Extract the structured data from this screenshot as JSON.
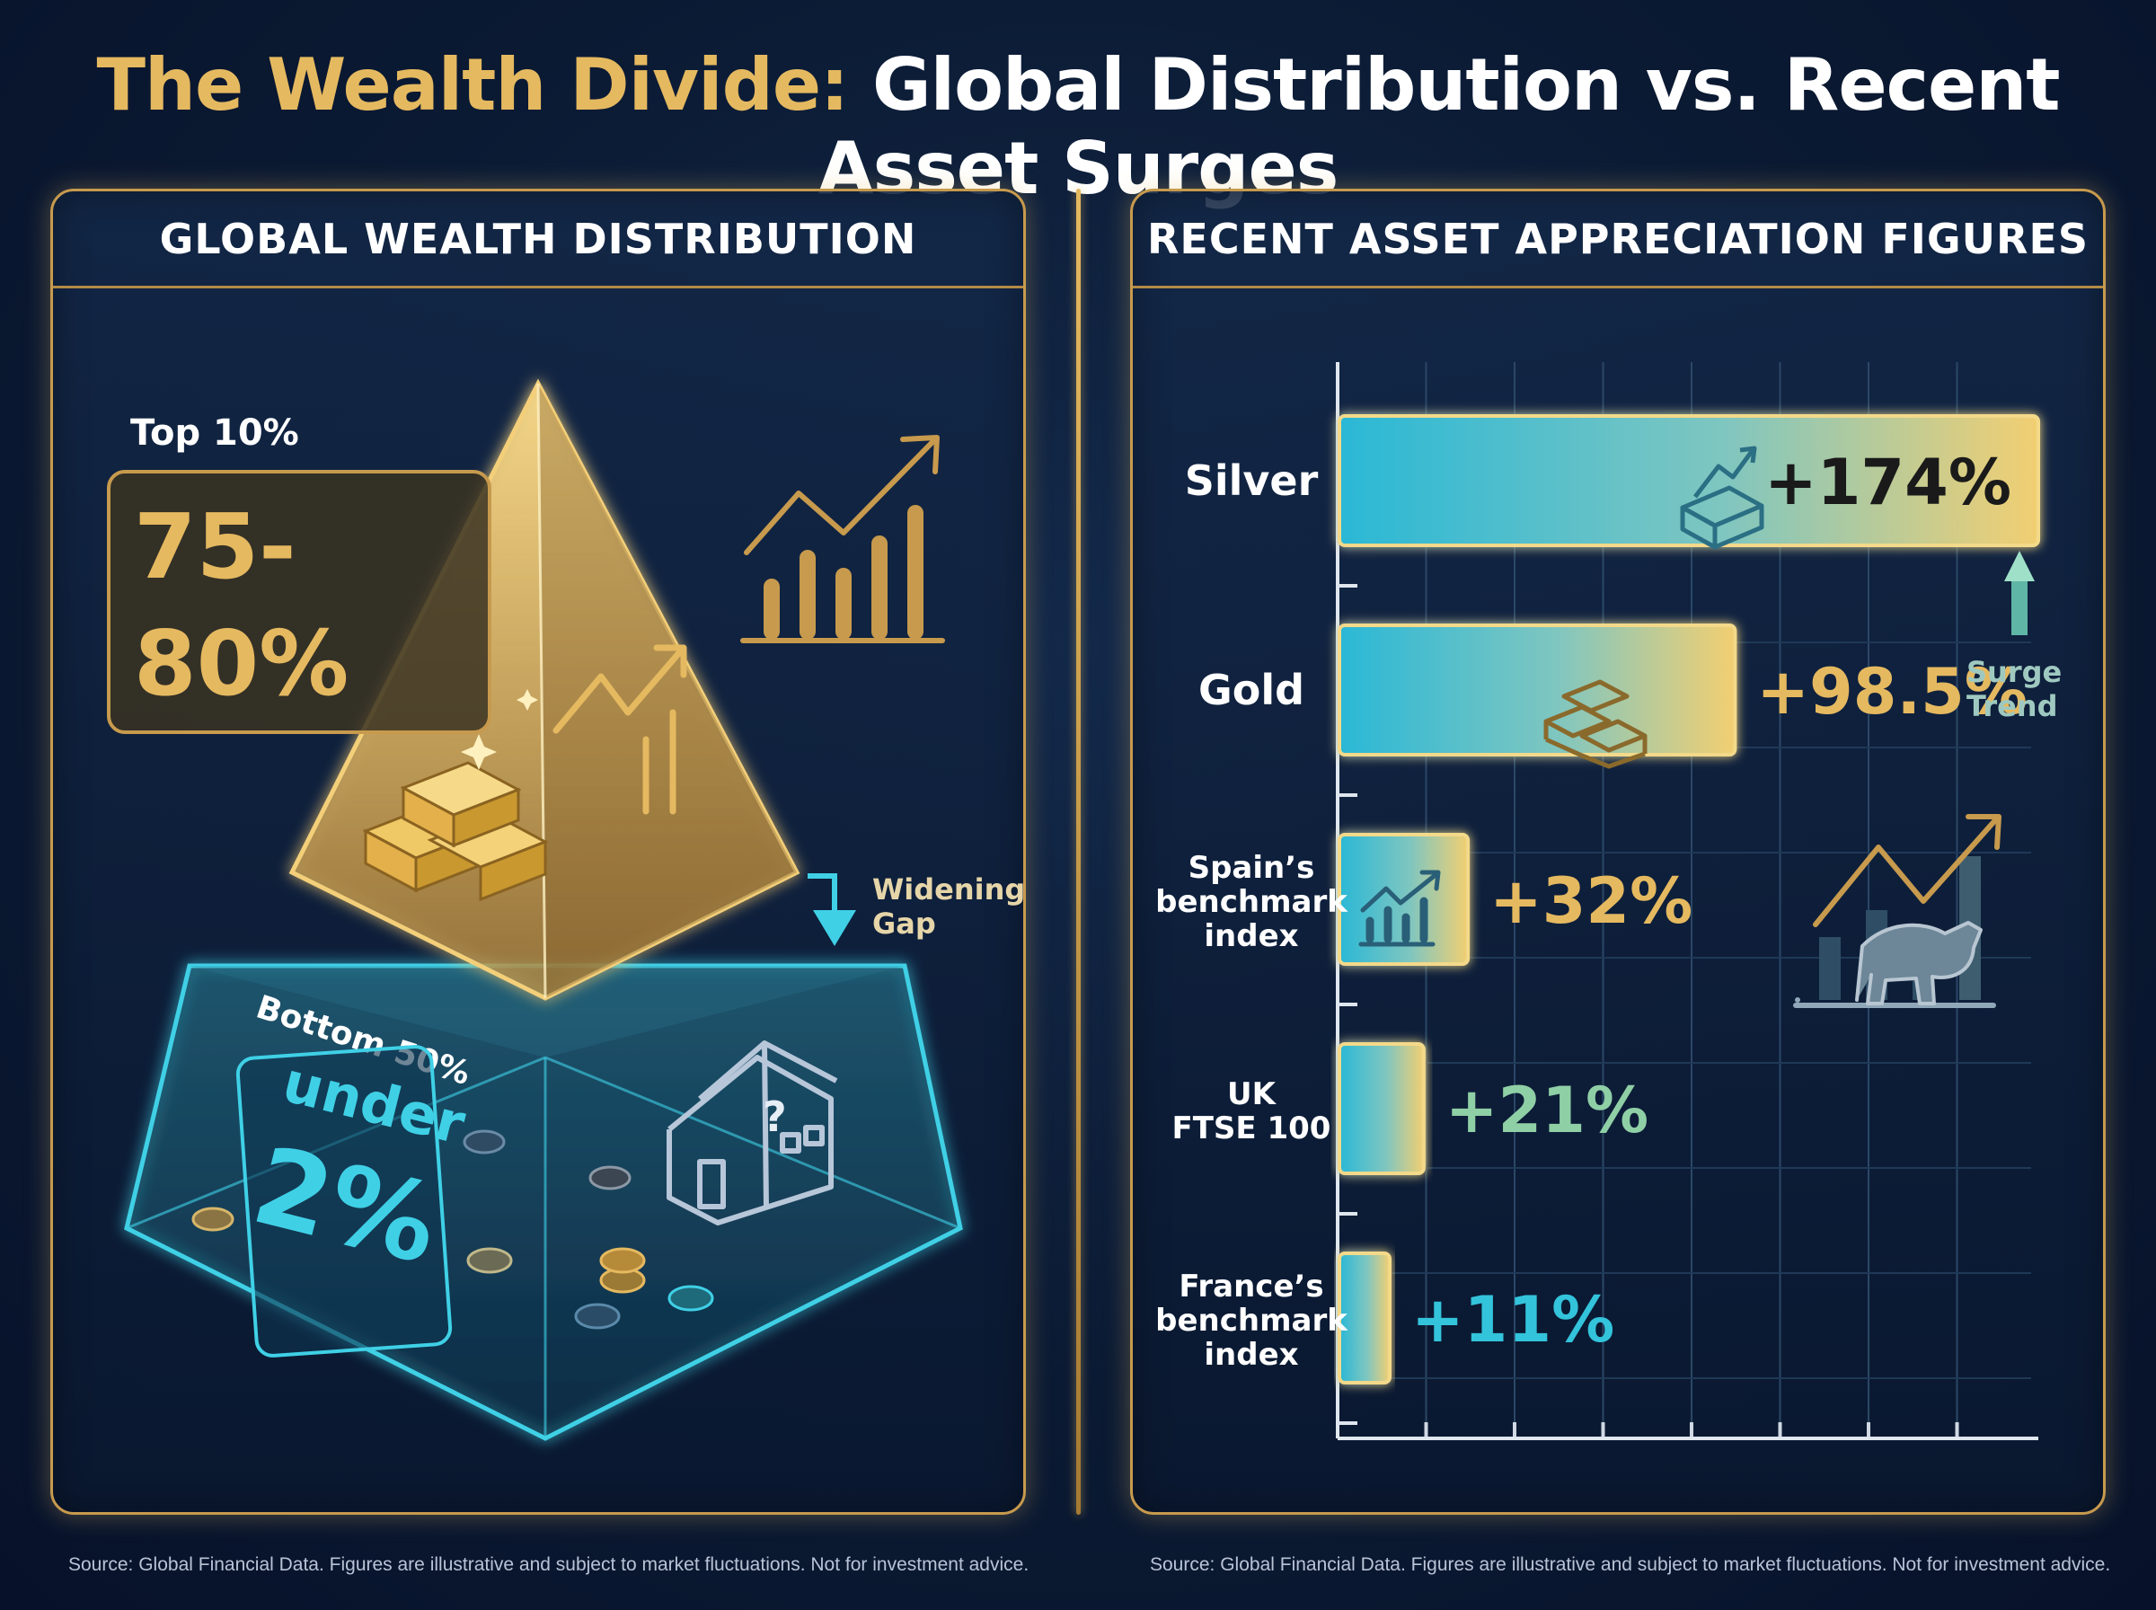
{
  "title": {
    "part1": "The Wealth Divide:",
    "part2": "Global Distribution vs. Recent Asset Surges"
  },
  "left_panel": {
    "heading": "GLOBAL WEALTH DISTRIBUTION",
    "top_label": "Top 10%",
    "top_value_line1": "75-",
    "top_value_line2": "80%",
    "bottom_label": "Bottom 50%",
    "bottom_value_line1": "under",
    "bottom_value_line2": "2%",
    "gap_label_line1": "Widening",
    "gap_label_line2": "Gap",
    "source": "Source: Global Financial Data. Figures are illustrative and subject to market fluctuations. Not for investment advice."
  },
  "right_panel": {
    "heading": "RECENT ASSET APPRECIATION FIGURES",
    "surge_label_line1": "Surge",
    "surge_label_line2": "Trend",
    "source": "Source: Global Financial Data. Figures are illustrative and subject to market fluctuations. Not for investment advice."
  },
  "colors": {
    "gold": "#e5b960",
    "teal": "#33c4dc",
    "navy": "#0b1a33"
  },
  "icons": [
    "silver-bar-icon",
    "gold-bars-icon",
    "growth-chart-icon",
    "bull-chart-icon",
    "house-question-icon",
    "coin-icon",
    "trend-chart-icon"
  ],
  "chart_data": {
    "type": "bar",
    "orientation": "horizontal",
    "title": "RECENT ASSET APPRECIATION FIGURES",
    "categories": [
      "Silver",
      "Gold",
      "Spain’s benchmark index",
      "UK FTSE 100",
      "France’s benchmark index"
    ],
    "category_lines": [
      [
        "Silver"
      ],
      [
        "Gold"
      ],
      [
        "Spain’s",
        "benchmark",
        "index"
      ],
      [
        "UK",
        "FTSE 100"
      ],
      [
        "France’s",
        "benchmark",
        "index"
      ]
    ],
    "values": [
      174,
      98.5,
      32,
      21,
      11
    ],
    "value_labels": [
      "+174%",
      "+98.5%",
      "+32%",
      "+21%",
      "+11%"
    ],
    "label_colors": [
      "#1a1a1a",
      "#e5b960",
      "#e5b960",
      "#8fcfa6",
      "#33c4dc"
    ],
    "xlim": [
      0,
      174
    ],
    "grid": true,
    "unit": "%"
  }
}
